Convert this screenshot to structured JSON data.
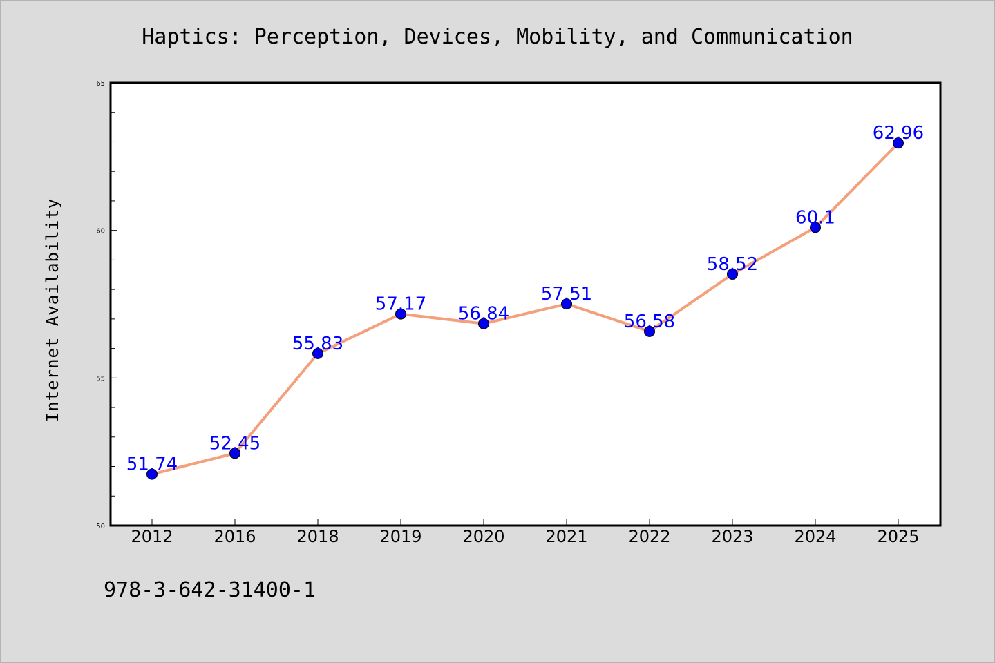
{
  "chart_data": {
    "type": "line",
    "title": "Haptics: Perception, Devices, Mobility, and Communication",
    "xlabel": "",
    "ylabel": "Internet Availability",
    "categories": [
      "2012",
      "2016",
      "2018",
      "2019",
      "2020",
      "2021",
      "2022",
      "2023",
      "2024",
      "2025"
    ],
    "series": [
      {
        "values": [
          51.74,
          52.45,
          55.83,
          57.17,
          56.84,
          57.51,
          56.58,
          58.52,
          60.1,
          62.96
        ],
        "data_labels": [
          "51.74",
          "52.45",
          "55.83",
          "57.17",
          "56.84",
          "57.51",
          "56.58",
          "58.52",
          "60.1",
          "62.96"
        ]
      }
    ],
    "ylim": [
      50,
      65
    ],
    "yticks": [
      "50",
      "55",
      "60",
      "65"
    ],
    "grid": false,
    "legend": "none",
    "colors": {
      "line": "#f4a07c",
      "marker": "#0000ee",
      "data_label": "#0000ff",
      "background": "#dcdcdc",
      "plot_background": "#ffffff"
    }
  },
  "footer": {
    "isbn": "978-3-642-31400-1"
  }
}
